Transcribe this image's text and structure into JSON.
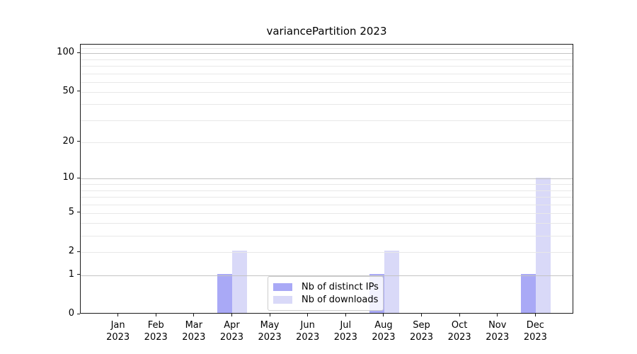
{
  "chart_data": {
    "type": "bar",
    "title": "variancePartition 2023",
    "categories": [
      "Jan 2023",
      "Feb 2023",
      "Mar 2023",
      "Apr 2023",
      "May 2023",
      "Jun 2023",
      "Jul 2023",
      "Aug 2023",
      "Sep 2023",
      "Oct 2023",
      "Nov 2023",
      "Dec 2023"
    ],
    "series": [
      {
        "name": "Nb of distinct IPs",
        "color": "#a9a9f6",
        "values": [
          0,
          0,
          0,
          1,
          0,
          0,
          0,
          1,
          0,
          0,
          0,
          1
        ]
      },
      {
        "name": "Nb of downloads",
        "color": "#d9d9f8",
        "values": [
          0,
          0,
          0,
          2,
          0,
          0,
          0,
          2,
          0,
          0,
          0,
          10
        ]
      }
    ],
    "xlabel": "",
    "ylabel": "",
    "yscale": "log1p",
    "ylim": [
      0,
      117
    ],
    "yticks": [
      0,
      1,
      2,
      5,
      10,
      20,
      50,
      100
    ],
    "gridlines_major": [
      1,
      10,
      100
    ],
    "gridlines_minor": [
      2,
      3,
      4,
      5,
      6,
      7,
      8,
      9,
      20,
      30,
      40,
      50,
      60,
      70,
      80,
      90,
      110
    ],
    "grid": true,
    "legend_position": "lower center",
    "colors": {
      "axis": "#1a1a1a",
      "grid_major": "#c3c3c3",
      "grid_minor": "#e8e8e8",
      "background": "#ffffff"
    }
  }
}
